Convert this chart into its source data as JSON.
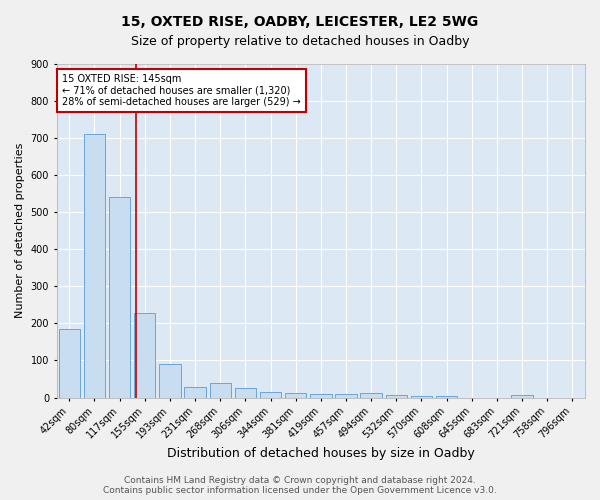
{
  "title1": "15, OXTED RISE, OADBY, LEICESTER, LE2 5WG",
  "title2": "Size of property relative to detached houses in Oadby",
  "xlabel": "Distribution of detached houses by size in Oadby",
  "ylabel": "Number of detached properties",
  "categories": [
    "42sqm",
    "80sqm",
    "117sqm",
    "155sqm",
    "193sqm",
    "231sqm",
    "268sqm",
    "306sqm",
    "344sqm",
    "381sqm",
    "419sqm",
    "457sqm",
    "494sqm",
    "532sqm",
    "570sqm",
    "608sqm",
    "645sqm",
    "683sqm",
    "721sqm",
    "758sqm",
    "796sqm"
  ],
  "values": [
    185,
    710,
    540,
    228,
    90,
    28,
    38,
    26,
    15,
    12,
    10,
    9,
    11,
    6,
    5,
    5,
    0,
    0,
    8,
    0,
    0
  ],
  "bar_color": "#c9ddf0",
  "bar_edge_color": "#5b9bd5",
  "vline_x": 2.65,
  "vline_color": "#c00000",
  "ylim": [
    0,
    900
  ],
  "yticks": [
    0,
    100,
    200,
    300,
    400,
    500,
    600,
    700,
    800,
    900
  ],
  "annotation_text": "15 OXTED RISE: 145sqm\n← 71% of detached houses are smaller (1,320)\n28% of semi-detached houses are larger (529) →",
  "annotation_box_color": "#ffffff",
  "annotation_box_edge": "#c00000",
  "footer1": "Contains HM Land Registry data © Crown copyright and database right 2024.",
  "footer2": "Contains public sector information licensed under the Open Government Licence v3.0.",
  "bg_color": "#dce9f5",
  "fig_color": "#f0f0f0",
  "grid_color": "#ffffff",
  "title1_fontsize": 10,
  "title2_fontsize": 9,
  "xlabel_fontsize": 9,
  "ylabel_fontsize": 8,
  "tick_fontsize": 7,
  "annot_fontsize": 7,
  "footer_fontsize": 6.5
}
